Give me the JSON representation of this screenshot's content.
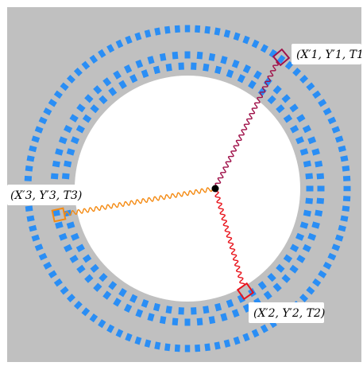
{
  "colors": {
    "background": "#c0c0c0",
    "bore": "#ffffff",
    "detector_blocks": "#2a8ef5",
    "ray1": "#a0124a",
    "ray2": "#e8141c",
    "ray3": "#f48a12",
    "center_dot": "#000000",
    "label_box": "#ffffff"
  },
  "hits": [
    {
      "label": "(X′1, Y′1, T1)",
      "color_key": "ray1"
    },
    {
      "label": "(X′2, Y′2, T2)",
      "color_key": "ray2"
    },
    {
      "label": "(X′3, Y′3, T3)",
      "color_key": "ray3"
    }
  ]
}
